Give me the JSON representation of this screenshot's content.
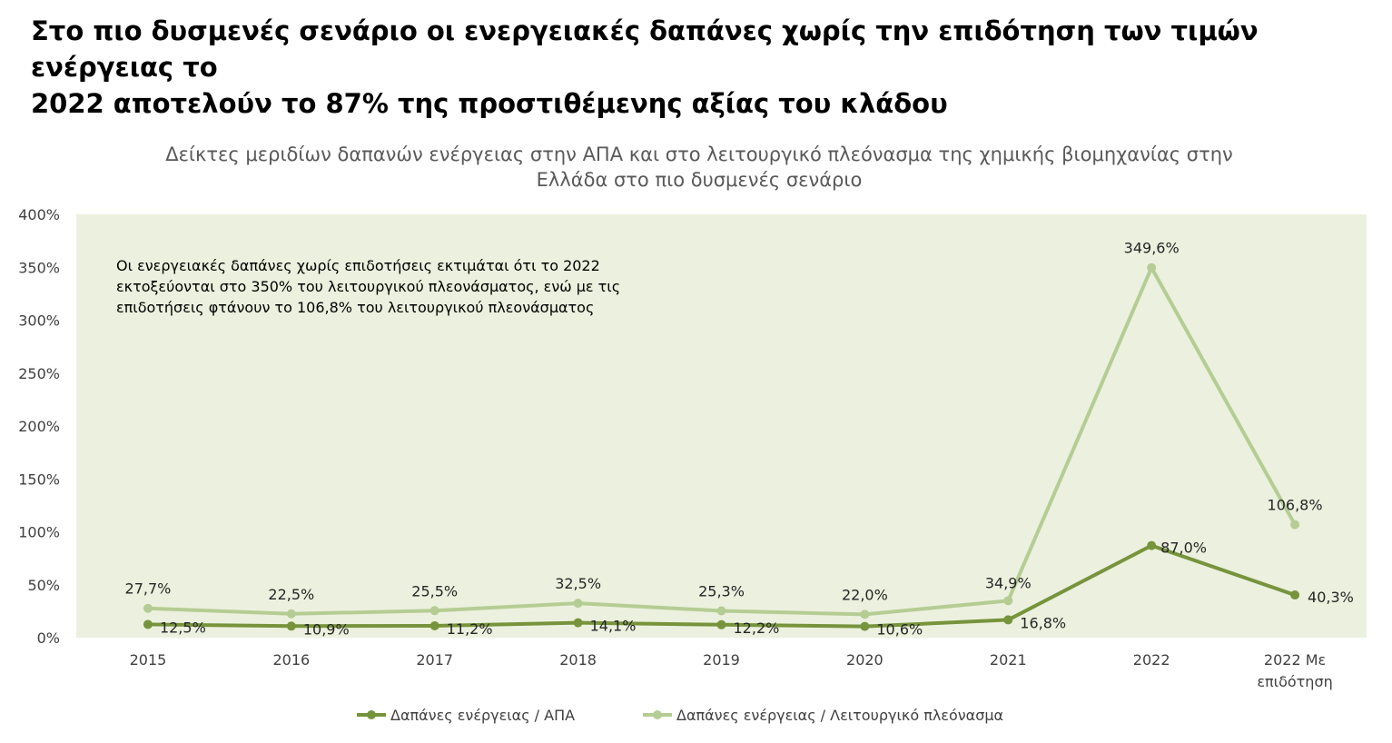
{
  "headline": {
    "line1": "Στο πιο δυσμενές σενάριο οι ενεργειακές δαπάνες χωρίς την επιδότηση των τιμών ενέργειας το",
    "line2": "2022 αποτελούν το 87% της προστιθέμενης αξίας του κλάδου"
  },
  "chart_data": {
    "type": "line",
    "title_lines": [
      "Δείκτες μεριδίων δαπανών ενέργειας στην ΑΠΑ και στο λειτουργικό πλεόνασμα της χημικής βιομηχανίας στην",
      "Ελλάδα στο πιο δυσμενές σενάριο"
    ],
    "categories": [
      "2015",
      "2016",
      "2017",
      "2018",
      "2019",
      "2020",
      "2021",
      "2022",
      [
        "2022 Με",
        "επιδότηση"
      ]
    ],
    "ylim": [
      0,
      400
    ],
    "yticks": [
      0,
      50,
      100,
      150,
      200,
      250,
      300,
      350,
      400
    ],
    "ytick_labels": [
      "0%",
      "50%",
      "100%",
      "150%",
      "200%",
      "250%",
      "300%",
      "350%",
      "400%"
    ],
    "series": [
      {
        "name": "Δαπάνες ενέργειας / ΑΠΑ",
        "color": "#77933c",
        "values": [
          12.5,
          10.9,
          11.2,
          14.1,
          12.2,
          10.6,
          16.8,
          87.0,
          40.3
        ],
        "labels": [
          "12,5%",
          "10,9%",
          "11,2%",
          "14,1%",
          "12,2%",
          "10,6%",
          "16,8%",
          "87,0%",
          "40,3%"
        ]
      },
      {
        "name": "Δαπάνες ενέργειας / Λειτουργικό πλεόνασμα",
        "color": "#b5cc94",
        "values": [
          27.7,
          22.5,
          25.5,
          32.5,
          25.3,
          22.0,
          34.9,
          349.6,
          106.8
        ],
        "labels": [
          "27,7%",
          "22,5%",
          "25,5%",
          "32,5%",
          "25,3%",
          "22,0%",
          "34,9%",
          "349,6%",
          "106,8%"
        ]
      }
    ],
    "annotation": [
      "Οι ενεργειακές δαπάνες χωρίς επιδοτήσεις εκτιμάται ότι το 2022",
      "εκτοξεύονται στο 350% του λειτουργικού πλεονάσματος, ενώ με τις",
      "επιδοτήσεις φτάνουν το 106,8% του λειτουργικού πλεονάσματος"
    ],
    "plot_background": "#ebf1de",
    "grid": false,
    "legend_position": "bottom"
  }
}
